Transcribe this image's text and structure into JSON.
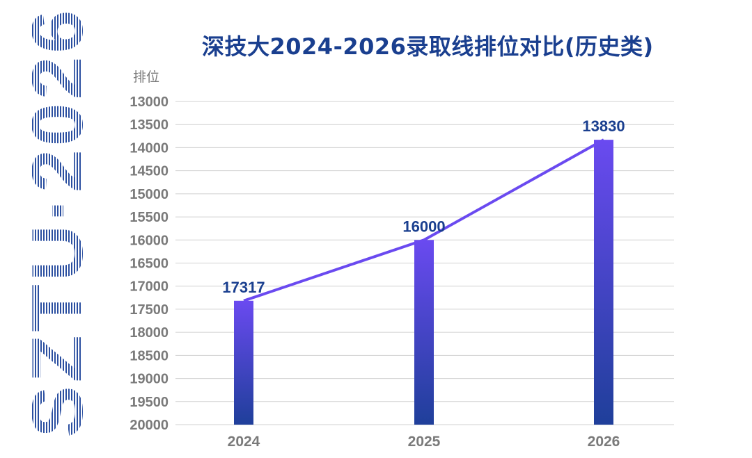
{
  "brand": {
    "text": "SZTU·2026",
    "color": "#2b4fa0"
  },
  "chart_data": {
    "type": "bar",
    "title": "深技大2024-2026录取线排位对比(历史类)",
    "ylabel": "排位",
    "xlabel": "",
    "categories": [
      "2024",
      "2025",
      "2026"
    ],
    "values": [
      17317,
      16000,
      13830
    ],
    "data_labels": [
      "17317",
      "16000",
      "13830"
    ],
    "ylim": [
      13000,
      20000
    ],
    "y_inverted": true,
    "yticks": [
      "13000",
      "13500",
      "14000",
      "14500",
      "15000",
      "15500",
      "16000",
      "16500",
      "17000",
      "17500",
      "18000",
      "18500",
      "19000",
      "19500",
      "20000"
    ],
    "grid": true,
    "overlay_line": true,
    "colors": {
      "bar_top": "#6a4af0",
      "bar_bottom": "#1f3f9a",
      "line": "#6a4af0",
      "label": "#1a3f8f",
      "grid": "#d0d0d0"
    }
  }
}
